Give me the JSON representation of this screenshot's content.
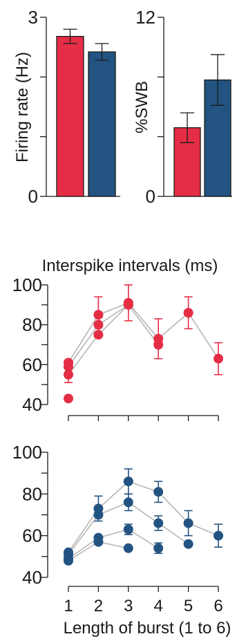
{
  "colors": {
    "red": "#e52d45",
    "blue": "#235381",
    "connector": "#b5b5b5"
  },
  "chart_data": [
    {
      "type": "bar",
      "ylabel": "Firing rate (Hz)",
      "ylim": [
        0,
        3
      ],
      "yticks": [
        0,
        1,
        2,
        3
      ],
      "ytick_labels": [
        "0",
        "",
        "",
        "3"
      ],
      "bars": [
        {
          "value": 2.68,
          "err": 0.12,
          "color": "red"
        },
        {
          "value": 2.42,
          "err": 0.14,
          "color": "blue"
        }
      ]
    },
    {
      "type": "bar",
      "ylabel": "%SWB",
      "ylim": [
        0,
        12
      ],
      "yticks": [
        0,
        4,
        8,
        12
      ],
      "ytick_labels": [
        "0",
        "",
        "",
        "12"
      ],
      "bars": [
        {
          "value": 4.6,
          "err": 1.0,
          "color": "red"
        },
        {
          "value": 7.8,
          "err": 1.7,
          "color": "blue"
        }
      ]
    },
    {
      "type": "scatter",
      "title": "Interspike intervals (ms)",
      "color": "red",
      "ylim": [
        40,
        100
      ],
      "yticks": [
        40,
        50,
        60,
        70,
        80,
        90,
        100
      ],
      "ytick_labels": [
        "40",
        "",
        "60",
        "",
        "80",
        "",
        "100"
      ],
      "xlim": [
        1,
        6
      ],
      "xticks": [
        1,
        2,
        3,
        4,
        5,
        6
      ],
      "xtick_labels": [
        "",
        "",
        "",
        "",
        "",
        ""
      ],
      "series": [
        {
          "x": [
            1,
            2,
            3,
            4,
            5,
            6
          ],
          "y": [
            61,
            85,
            91,
            73,
            86,
            63
          ]
        },
        {
          "x": [
            1,
            2,
            3,
            4
          ],
          "y": [
            59,
            80,
            90,
            70
          ]
        },
        {
          "x": [
            1,
            2,
            3
          ],
          "y": [
            55,
            75,
            90
          ]
        },
        {
          "x": [
            1
          ],
          "y": [
            43
          ]
        }
      ],
      "errorbars": [
        {
          "x": 1,
          "y": 55,
          "err": 4
        },
        {
          "x": 2,
          "y": 85,
          "err": 9
        },
        {
          "x": 3,
          "y": 91,
          "err": 9
        },
        {
          "x": 4,
          "y": 73,
          "err": 10
        },
        {
          "x": 5,
          "y": 86,
          "err": 8
        },
        {
          "x": 6,
          "y": 63,
          "err": 8
        }
      ]
    },
    {
      "type": "scatter",
      "color": "blue",
      "xlabel": "Length of burst (1 to 6)",
      "ylim": [
        40,
        100
      ],
      "yticks": [
        40,
        50,
        60,
        70,
        80,
        90,
        100
      ],
      "ytick_labels": [
        "40",
        "",
        "60",
        "",
        "80",
        "",
        "100"
      ],
      "xlim": [
        1,
        6
      ],
      "xticks": [
        1,
        2,
        3,
        4,
        5,
        6
      ],
      "xtick_labels": [
        "1",
        "2",
        "3",
        "4",
        "5",
        "6"
      ],
      "series": [
        {
          "x": [
            1,
            2,
            3,
            4,
            5,
            6
          ],
          "y": [
            52,
            73,
            86,
            81,
            66,
            60
          ]
        },
        {
          "x": [
            1,
            2,
            3,
            4,
            5
          ],
          "y": [
            51,
            70,
            76,
            66,
            56
          ]
        },
        {
          "x": [
            1,
            2,
            3,
            4
          ],
          "y": [
            49,
            59,
            63,
            54
          ]
        },
        {
          "x": [
            1,
            2,
            3
          ],
          "y": [
            48,
            57,
            54
          ]
        }
      ],
      "errorbars": [
        {
          "x": 2,
          "y": 73,
          "err": 6
        },
        {
          "x": 3,
          "y": 86,
          "err": 6
        },
        {
          "x": 3,
          "y": 76,
          "err": 4
        },
        {
          "x": 3,
          "y": 63,
          "err": 2.5
        },
        {
          "x": 4,
          "y": 81,
          "err": 5
        },
        {
          "x": 4,
          "y": 66,
          "err": 3.5
        },
        {
          "x": 4,
          "y": 54,
          "err": 2.5
        },
        {
          "x": 5,
          "y": 66,
          "err": 6
        },
        {
          "x": 6,
          "y": 60,
          "err": 5.5
        }
      ]
    }
  ]
}
